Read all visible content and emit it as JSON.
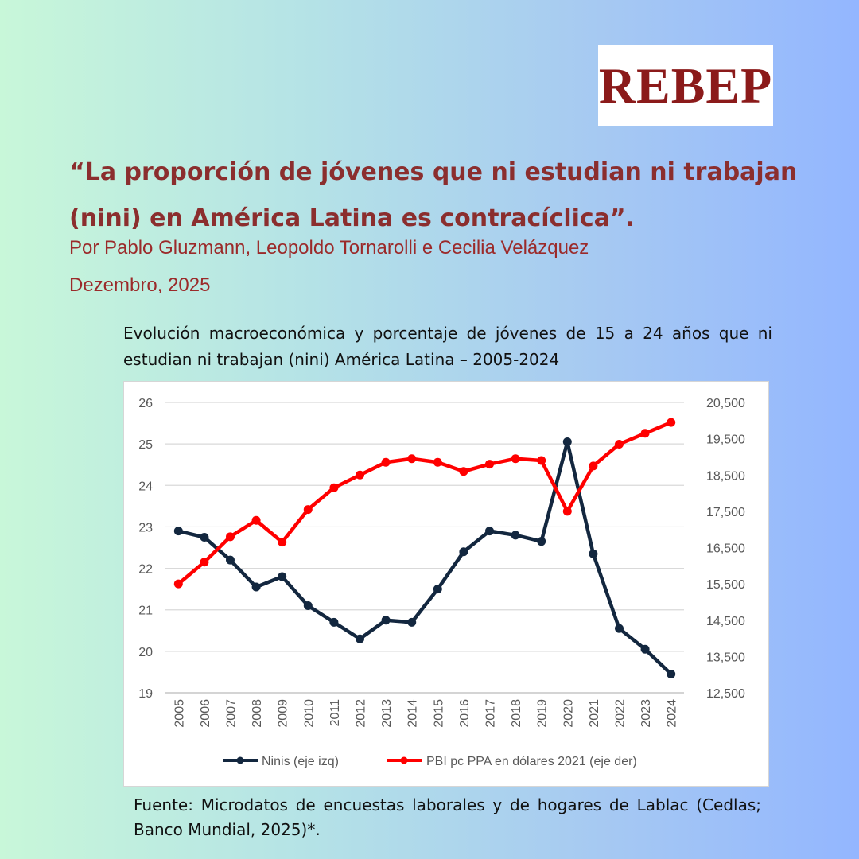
{
  "logo": {
    "text": "REBEP"
  },
  "headline": "“La proporción de jóvenes que ni estudian ni trabajan (nini) en América Latina es contracíclica”.",
  "byline": "Por Pablo Gluzmann, Leopoldo Tornarolli e Cecilia Velázquez",
  "date": "Dezembro, 2025",
  "caption": "Evolución macroeconómica y porcentaje de jóvenes de 15 a 24 años que ni estudian ni trabajan (nini) América Latina – 2005-2024",
  "source": "Fuente: Microdatos de encuestas laborales y de hogares de Lablac (Cedlas; Banco Mundial, 2025)*.",
  "colors": {
    "title": "#8b2e2e",
    "nini_series": "#13273f",
    "gdp_series": "#ff0000"
  },
  "chart_data": {
    "type": "line",
    "categories": [
      "2005",
      "2006",
      "2007",
      "2008",
      "2009",
      "2010",
      "2011",
      "2012",
      "2013",
      "2014",
      "2015",
      "2016",
      "2017",
      "2018",
      "2019",
      "2020",
      "2021",
      "2022",
      "2023",
      "2024"
    ],
    "series": [
      {
        "name": "Ninis (eje izq)",
        "axis": "left",
        "values": [
          22.9,
          22.75,
          22.2,
          21.55,
          21.8,
          21.1,
          20.7,
          20.3,
          20.75,
          20.7,
          21.5,
          22.4,
          22.9,
          22.8,
          22.65,
          25.05,
          22.35,
          20.55,
          20.05,
          19.45
        ]
      },
      {
        "name": "PBI pc PPA en dólares 2021 (eje der)",
        "axis": "right",
        "values": [
          15500,
          16100,
          16800,
          17250,
          16650,
          17550,
          18150,
          18500,
          18850,
          18950,
          18850,
          18600,
          18800,
          18950,
          18900,
          17500,
          18750,
          19350,
          19650,
          19950
        ]
      }
    ],
    "y_left": {
      "min": 19,
      "max": 26,
      "ticks": [
        "19",
        "20",
        "21",
        "22",
        "23",
        "24",
        "25",
        "26"
      ]
    },
    "y_right": {
      "min": 12500,
      "max": 20500,
      "ticks": [
        "12,500",
        "13,500",
        "14,500",
        "15,500",
        "16,500",
        "17,500",
        "18,500",
        "19,500",
        "20,500"
      ]
    },
    "grid": "horizontal",
    "legend_position": "bottom"
  }
}
